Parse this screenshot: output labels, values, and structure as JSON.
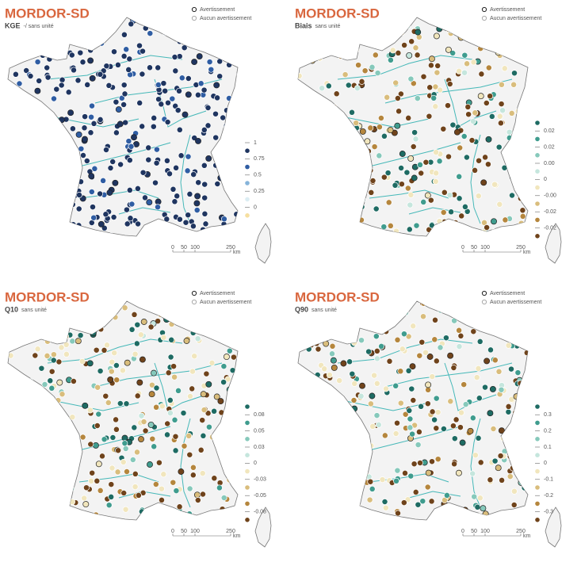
{
  "panels": [
    {
      "title": "MORDOR-SD",
      "metric": "KGE",
      "unit": "-/ sans unité",
      "legend": {
        "warning": "Avertissement",
        "no_warning": "Aucun avertissement"
      },
      "scale": {
        "ticks": [
          "1",
          "0.75",
          "0.5",
          "0.25",
          "0"
        ],
        "colors": [
          "#1f3560",
          "#2f5da3",
          "#86b4da",
          "#dcedf3",
          "#f6dfa0"
        ]
      },
      "scalebar": [
        "0",
        "50",
        "100",
        "250",
        "km"
      ]
    },
    {
      "title": "MORDOR-SD",
      "metric": "Biais",
      "unit": "sans unité",
      "legend": {
        "warning": "Avertissement",
        "no_warning": "Aucun avertissement"
      },
      "scale": {
        "ticks": [
          "0.02",
          "0.02",
          "0.00",
          "0",
          "-0.00",
          "-0.02",
          "-0.02"
        ],
        "colors": [
          "#1e6b63",
          "#3f9c8e",
          "#86c9bb",
          "#c5e6dd",
          "#f1e6bd",
          "#d9bd7c",
          "#b5863d",
          "#6f431b"
        ]
      },
      "scalebar": [
        "0",
        "50",
        "100",
        "250",
        "km"
      ]
    },
    {
      "title": "MORDOR-SD",
      "metric": "Q10",
      "unit": "sans unité",
      "legend": {
        "warning": "Avertissement",
        "no_warning": "Aucun avertissement"
      },
      "scale": {
        "ticks": [
          "0.08",
          "0.05",
          "0.03",
          "0",
          "-0.03",
          "-0.05",
          "-0.08"
        ],
        "colors": [
          "#1e6b63",
          "#3f9c8e",
          "#86c9bb",
          "#c5e6dd",
          "#f1e6bd",
          "#d9bd7c",
          "#b5863d",
          "#6f431b"
        ]
      },
      "scalebar": [
        "0",
        "50",
        "100",
        "250",
        "km"
      ]
    },
    {
      "title": "MORDOR-SD",
      "metric": "Q90",
      "unit": "sans unité",
      "legend": {
        "warning": "Avertissement",
        "no_warning": "Aucun avertissement"
      },
      "scale": {
        "ticks": [
          "0.3",
          "0.2",
          "0.1",
          "0",
          "-0.1",
          "-0.2",
          "-0.3"
        ],
        "colors": [
          "#1e6b63",
          "#3f9c8e",
          "#86c9bb",
          "#c5e6dd",
          "#f1e6bd",
          "#d9bd7c",
          "#b5863d",
          "#6f431b"
        ]
      },
      "scalebar": [
        "0",
        "50",
        "100",
        "250",
        "km"
      ]
    }
  ]
}
